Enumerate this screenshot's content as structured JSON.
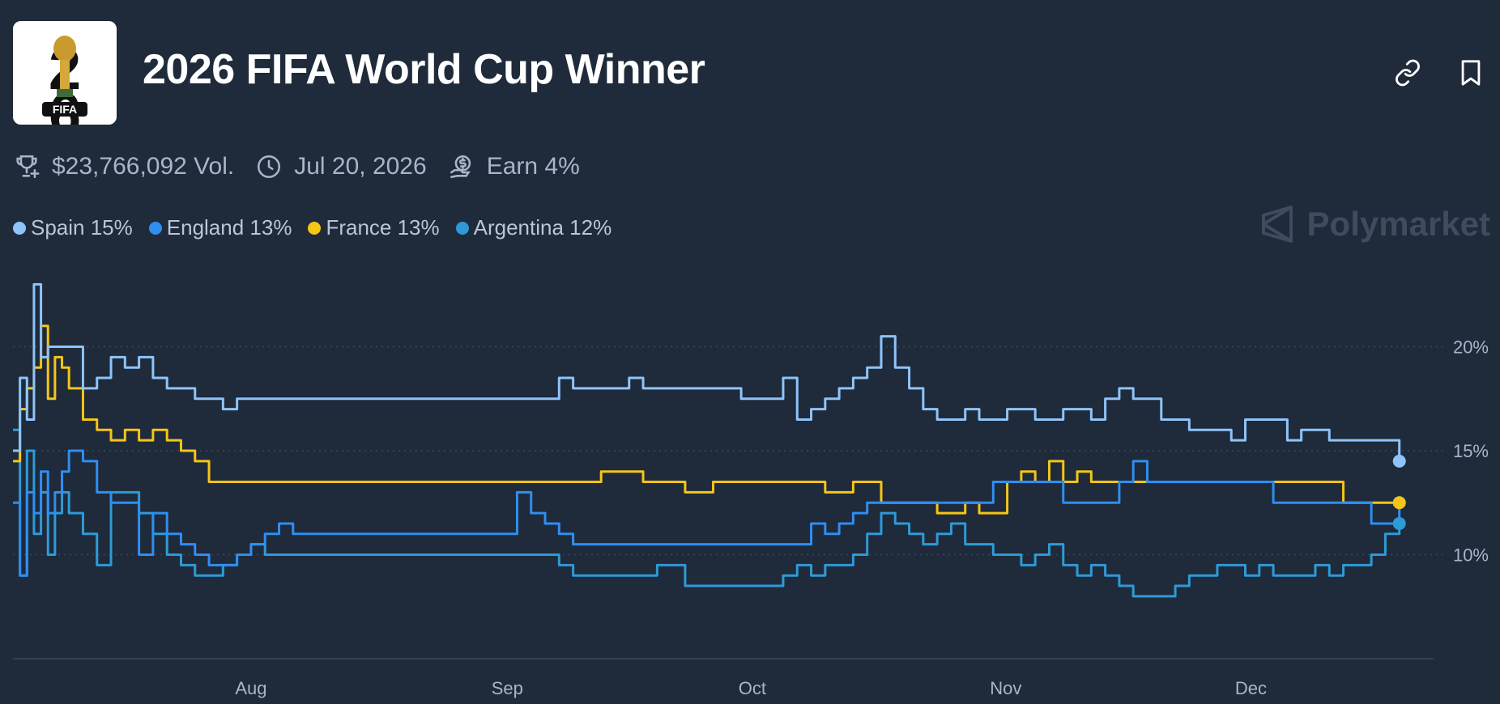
{
  "header": {
    "title": "2026 FIFA World Cup Winner",
    "logo_text": "FIFA"
  },
  "meta": {
    "volume": "$23,766,092 Vol.",
    "end_date": "Jul 20, 2026",
    "earn": "Earn 4%"
  },
  "brand": {
    "name": "Polymarket"
  },
  "legend": [
    {
      "label": "Spain 15%",
      "color": "#8ec4fa"
    },
    {
      "label": "England 13%",
      "color": "#2f8ef2"
    },
    {
      "label": "France 13%",
      "color": "#f5c518"
    },
    {
      "label": "Argentina 12%",
      "color": "#2e9ad8"
    }
  ],
  "chart_data": {
    "type": "line",
    "title": "2026 FIFA World Cup Winner",
    "x_ticks": [
      "Aug",
      "Sep",
      "Oct",
      "Nov",
      "Dec"
    ],
    "y_ticks": [
      "10%",
      "15%",
      "20%"
    ],
    "y_tick_values": [
      10,
      15,
      20
    ],
    "ylim": [
      5,
      25
    ],
    "x_range": [
      0,
      100
    ],
    "x_tick_positions": [
      17,
      35.3,
      52.8,
      70.9,
      88.4
    ],
    "series": [
      {
        "name": "Spain",
        "color": "#8ec4fa",
        "final": 14.5,
        "x": [
          0,
          0.5,
          1,
          1.5,
          2,
          2.5,
          3,
          3.5,
          4,
          5,
          6,
          7,
          8,
          9,
          10,
          11,
          12,
          13,
          14,
          15,
          16,
          17,
          20,
          25,
          30,
          35,
          38,
          39,
          40,
          42,
          44,
          45,
          46,
          48,
          50,
          52,
          54,
          55,
          56,
          57,
          58,
          59,
          60,
          61,
          62,
          63,
          64,
          65,
          66,
          67,
          68,
          69,
          70,
          71,
          72,
          73,
          74,
          75,
          76,
          77,
          78,
          79,
          80,
          81,
          82,
          83,
          84,
          85,
          86,
          87,
          88,
          89,
          90,
          91,
          92,
          93,
          94,
          95,
          96,
          97,
          98,
          99
        ],
        "y": [
          15,
          18.5,
          16.5,
          23,
          19.5,
          20,
          20,
          20,
          20,
          18,
          18.5,
          19.5,
          19,
          19.5,
          18.5,
          18,
          18,
          17.5,
          17.5,
          17,
          17.5,
          17.5,
          17.5,
          17.5,
          17.5,
          17.5,
          17.5,
          18.5,
          18,
          18,
          18.5,
          18,
          18,
          18,
          18,
          17.5,
          17.5,
          18.5,
          16.5,
          17,
          17.5,
          18,
          18.5,
          19,
          20.5,
          19,
          18,
          17,
          16.5,
          16.5,
          17,
          16.5,
          16.5,
          17,
          17,
          16.5,
          16.5,
          17,
          17,
          16.5,
          17.5,
          18,
          17.5,
          17.5,
          16.5,
          16.5,
          16,
          16,
          16,
          15.5,
          16.5,
          16.5,
          16.5,
          15.5,
          16,
          16,
          15.5,
          15.5,
          15.5,
          15.5,
          15.5,
          14.5
        ]
      },
      {
        "name": "England",
        "color": "#2f8ef2",
        "final": 12.5,
        "x": [
          0,
          0.5,
          1,
          1.5,
          2,
          2.5,
          3,
          3.5,
          4,
          5,
          6,
          7,
          8,
          9,
          10,
          11,
          12,
          13,
          14,
          15,
          16,
          17,
          18,
          19,
          20,
          25,
          30,
          35,
          36,
          37,
          38,
          39,
          40,
          45,
          50,
          55,
          57,
          58,
          59,
          60,
          61,
          62,
          63,
          64,
          65,
          66,
          67,
          68,
          69,
          70,
          72,
          75,
          77,
          78,
          79,
          80,
          81,
          82,
          85,
          88,
          90,
          92,
          95,
          97,
          99
        ],
        "y": [
          12.5,
          9,
          13,
          12,
          14,
          12,
          13,
          14,
          15,
          14.5,
          13,
          12.5,
          12.5,
          10,
          12,
          11,
          10.5,
          10,
          9.5,
          9.5,
          10,
          10.5,
          11,
          11.5,
          11,
          11,
          11,
          11,
          13,
          12,
          11.5,
          11,
          10.5,
          10.5,
          10.5,
          10.5,
          11.5,
          11,
          11.5,
          12,
          12.5,
          12.5,
          12.5,
          12.5,
          12.5,
          12.5,
          12.5,
          12.5,
          12.5,
          13.5,
          13.5,
          12.5,
          12.5,
          12.5,
          13.5,
          14.5,
          13.5,
          13.5,
          13.5,
          13.5,
          12.5,
          12.5,
          12.5,
          11.5,
          12.5
        ]
      },
      {
        "name": "France",
        "color": "#f5c518",
        "final": 12.5,
        "x": [
          0,
          0.5,
          1,
          1.5,
          2,
          2.5,
          3,
          3.5,
          4,
          5,
          6,
          7,
          8,
          9,
          10,
          11,
          12,
          13,
          14,
          15,
          20,
          25,
          30,
          35,
          40,
          42,
          45,
          48,
          50,
          55,
          58,
          60,
          62,
          65,
          66,
          67,
          68,
          69,
          70,
          71,
          72,
          73,
          74,
          75,
          76,
          77,
          80,
          82,
          85,
          88,
          90,
          92,
          95,
          99
        ],
        "y": [
          14.5,
          17,
          18,
          19,
          21,
          17.5,
          19.5,
          19,
          18,
          16.5,
          16,
          15.5,
          16,
          15.5,
          16,
          15.5,
          15,
          14.5,
          13.5,
          13.5,
          13.5,
          13.5,
          13.5,
          13.5,
          13.5,
          14,
          13.5,
          13,
          13.5,
          13.5,
          13,
          13.5,
          12.5,
          12.5,
          12,
          12,
          12.5,
          12,
          12,
          13.5,
          14,
          13.5,
          14.5,
          13.5,
          14,
          13.5,
          13.5,
          13.5,
          13.5,
          13.5,
          13.5,
          13.5,
          12.5,
          12.5
        ]
      },
      {
        "name": "Argentina",
        "color": "#2e9ad8",
        "final": 11.5,
        "x": [
          0,
          0.5,
          1,
          1.5,
          2,
          2.5,
          3,
          3.5,
          4,
          5,
          6,
          7,
          8,
          9,
          10,
          11,
          12,
          13,
          14,
          15,
          16,
          17,
          18,
          20,
          25,
          30,
          35,
          38,
          39,
          40,
          42,
          44,
          46,
          48,
          50,
          52,
          54,
          55,
          56,
          57,
          58,
          59,
          60,
          61,
          62,
          63,
          64,
          65,
          66,
          67,
          68,
          69,
          70,
          71,
          72,
          73,
          74,
          75,
          76,
          77,
          78,
          79,
          80,
          81,
          82,
          83,
          84,
          85,
          86,
          87,
          88,
          89,
          90,
          91,
          92,
          93,
          94,
          95,
          96,
          97,
          98,
          99
        ],
        "y": [
          16,
          9,
          15,
          11,
          13,
          10,
          12,
          13,
          12,
          11,
          9.5,
          13,
          13,
          12,
          11,
          10,
          9.5,
          9,
          9,
          9.5,
          10,
          10.5,
          10,
          10,
          10,
          10,
          10,
          10,
          9.5,
          9,
          9,
          9,
          9.5,
          8.5,
          8.5,
          8.5,
          8.5,
          9,
          9.5,
          9,
          9.5,
          9.5,
          10,
          11,
          12,
          11.5,
          11,
          10.5,
          11,
          11.5,
          10.5,
          10.5,
          10,
          10,
          9.5,
          10,
          10.5,
          9.5,
          9,
          9.5,
          9,
          8.5,
          8,
          8,
          8,
          8.5,
          9,
          9,
          9.5,
          9.5,
          9,
          9.5,
          9,
          9,
          9,
          9.5,
          9,
          9.5,
          9.5,
          10,
          11,
          11.5
        ]
      }
    ]
  }
}
